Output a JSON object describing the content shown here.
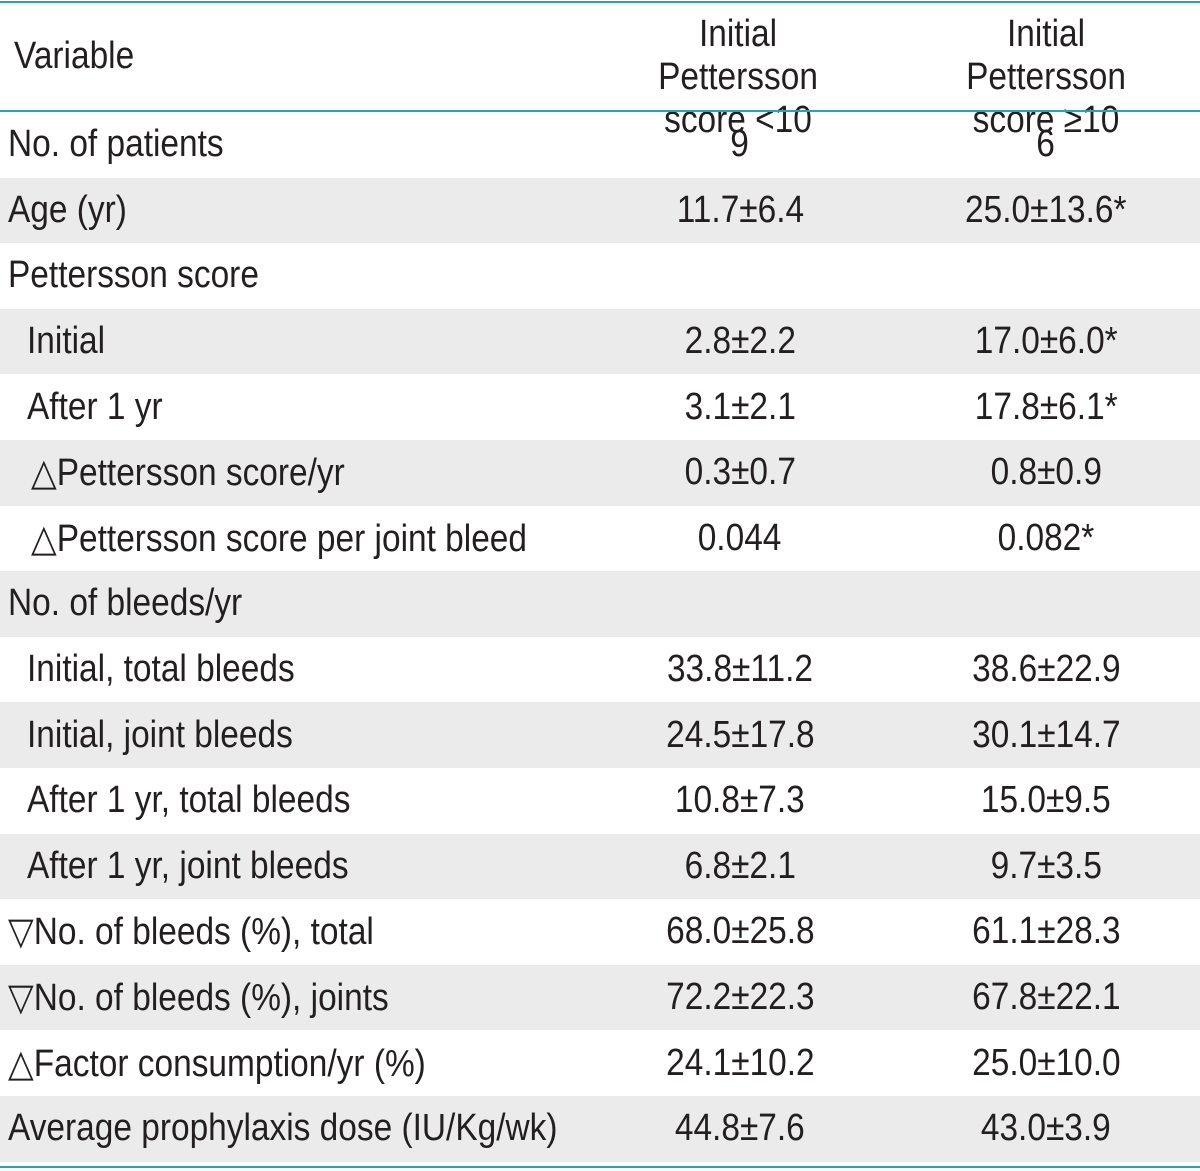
{
  "table": {
    "header": {
      "variable": "Variable",
      "col1": [
        "Initial Pettersson",
        "score <10"
      ],
      "col2": [
        "Initial Pettersson",
        "score ≥10"
      ]
    },
    "rows": [
      {
        "label": "No. of patients",
        "v1": "9",
        "v2": "6",
        "indent": 0
      },
      {
        "label": "Age (yr)",
        "v1": "11.7±6.4",
        "v2": "25.0±13.6*",
        "indent": 0
      },
      {
        "label": "Pettersson score",
        "v1": "",
        "v2": "",
        "indent": 0
      },
      {
        "label": "Initial",
        "v1": "2.8±2.2",
        "v2": "17.0±6.0*",
        "indent": 1
      },
      {
        "label": "After 1 yr",
        "v1": "3.1±2.1",
        "v2": "17.8±6.1*",
        "indent": 1
      },
      {
        "label": "△Pettersson score/yr",
        "v1": "0.3±0.7",
        "v2": "0.8±0.9",
        "indent": 2
      },
      {
        "label": "△Pettersson score per joint bleed",
        "v1": "0.044",
        "v2": "0.082*",
        "indent": 2
      },
      {
        "label": "No. of bleeds/yr",
        "v1": "",
        "v2": "",
        "indent": 0
      },
      {
        "label": "Initial, total bleeds",
        "v1": "33.8±11.2",
        "v2": "38.6±22.9",
        "indent": 1
      },
      {
        "label": "Initial, joint bleeds",
        "v1": "24.5±17.8",
        "v2": "30.1±14.7",
        "indent": 1
      },
      {
        "label": "After 1 yr, total bleeds",
        "v1": "10.8±7.3",
        "v2": "15.0±9.5",
        "indent": 1
      },
      {
        "label": "After 1 yr, joint bleeds",
        "v1": "6.8±2.1",
        "v2": "9.7±3.5",
        "indent": 1
      },
      {
        "label": "▽No. of bleeds (%), total",
        "v1": "68.0±25.8",
        "v2": "61.1±28.3",
        "indent": 0
      },
      {
        "label": "▽No. of bleeds (%), joints",
        "v1": "72.2±22.3",
        "v2": "67.8±22.1",
        "indent": 0
      },
      {
        "label": "△Factor consumption/yr (%)",
        "v1": "24.1±10.2",
        "v2": "25.0±10.0",
        "indent": 0
      },
      {
        "label": "Average prophylaxis dose (IU/Kg/wk)",
        "v1": "44.8±7.6",
        "v2": "43.0±3.9",
        "indent": 0
      }
    ]
  },
  "colors": {
    "rule": "#29a3b8",
    "shade": "#ebebeb",
    "text": "#231f20"
  }
}
